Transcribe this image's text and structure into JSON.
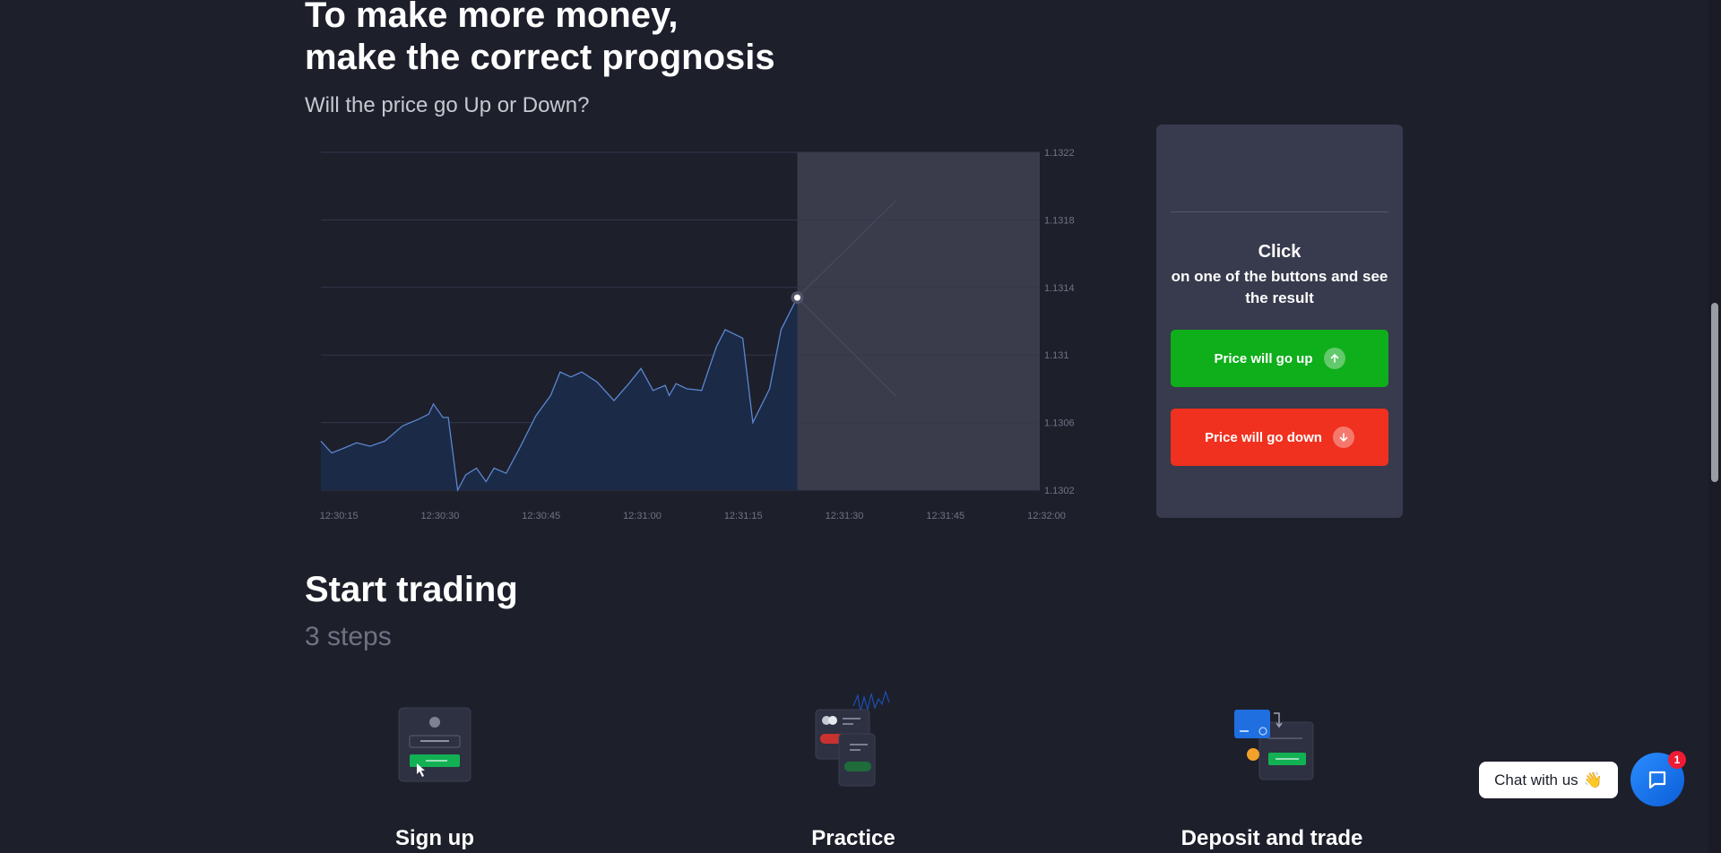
{
  "hero": {
    "title_line1": "To make more money,",
    "title_line2": "make the correct prognosis",
    "subtitle": "Will the price go Up or Down?"
  },
  "chart_data": {
    "type": "area",
    "x_ticks": [
      "12:30:15",
      "12:30:30",
      "12:30:45",
      "12:31:00",
      "12:31:15",
      "12:31:30",
      "12:31:45",
      "12:32:00"
    ],
    "y_ticks": [
      "1.1322",
      "1.1318",
      "1.1314",
      "1.131",
      "1.1306",
      "1.1302"
    ],
    "ylim": [
      1.1302,
      1.1322
    ],
    "xlim_seconds_from_first_tick": [
      -2.5,
      113.5
    ],
    "series": [
      {
        "x_seconds_from_first_tick": [
          -2.5,
          -0.9,
          1,
          2.8,
          4.8,
          7,
          9.6,
          12,
          13.5,
          14.2,
          15.6,
          16.4,
          17.8,
          19,
          20.6,
          22,
          23.2,
          25,
          27,
          29.4,
          31.6,
          33,
          34.6,
          36.2,
          38.5,
          41,
          43.2,
          45,
          46.8,
          48.6,
          49.2,
          50.2,
          51.8,
          54,
          56.2,
          57.5,
          60.1,
          61.6,
          64.1,
          65.8,
          68.2
        ],
        "values": [
          1.13049,
          1.13042,
          1.13045,
          1.13048,
          1.13046,
          1.13049,
          1.13058,
          1.13062,
          1.13065,
          1.13071,
          1.13063,
          1.13063,
          1.1302,
          1.13029,
          1.13033,
          1.13025,
          1.13033,
          1.1303,
          1.13045,
          1.13064,
          1.13076,
          1.1309,
          1.13087,
          1.1309,
          1.13084,
          1.13073,
          1.13083,
          1.13092,
          1.13079,
          1.13082,
          1.13076,
          1.13083,
          1.1308,
          1.13079,
          1.13105,
          1.13115,
          1.1311,
          1.1306,
          1.1308,
          1.13115,
          1.13134
        ]
      }
    ],
    "current_point": {
      "x_seconds_from_first_tick": 68.2,
      "value": 1.13134
    }
  },
  "panel": {
    "click_title": "Click",
    "click_desc": "on one of the buttons and see the result",
    "up_label": "Price will go up",
    "down_label": "Price will go down",
    "up_color": "#0fae1b",
    "down_color": "#f0311f"
  },
  "start": {
    "title": "Start trading",
    "subtitle": "3 steps",
    "steps": [
      {
        "label": "Sign up",
        "icon": "signup-illustration-icon"
      },
      {
        "label": "Practice",
        "icon": "practice-illustration-icon"
      },
      {
        "label": "Deposit and trade",
        "icon": "deposit-illustration-icon"
      }
    ]
  },
  "chat": {
    "label": "Chat with us",
    "emoji": "👋",
    "badge": "1"
  }
}
